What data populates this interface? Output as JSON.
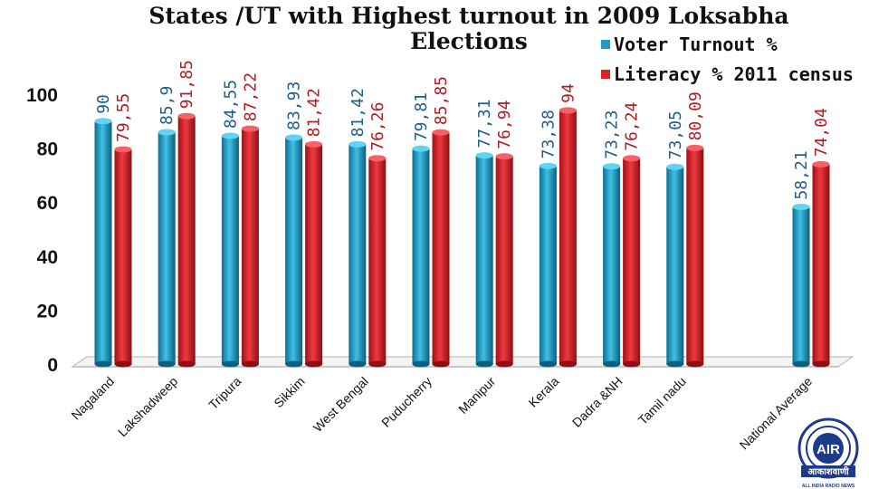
{
  "chart_data": {
    "type": "bar",
    "title_line1": "States /UT with Highest turnout in 2009 Loksabha",
    "title_line2": "Elections",
    "categories": [
      "Nagaland",
      "Lakshadweep",
      "Tripura",
      "Sikkim",
      "West Bengal",
      "Puducherry",
      "Manipur",
      "Kerala",
      "Dadra &NH",
      "Tamil nadu",
      "National Average"
    ],
    "series": [
      {
        "name": "Voter Turnout %",
        "color": "#1f9bc4",
        "label_color": "#1f5f8b",
        "values": [
          90,
          85.9,
          84.55,
          83.93,
          81.42,
          79.81,
          77.31,
          73.38,
          73.23,
          73.05,
          58.21
        ],
        "labels": [
          "90",
          "85,9",
          "84,55",
          "83,93",
          "81,42",
          "79,81",
          "77,31",
          "73,38",
          "73,23",
          "73,05",
          "58,21"
        ]
      },
      {
        "name": "Literacy % 2011 census",
        "color": "#d8232a",
        "label_color": "#b01e24",
        "values": [
          79.55,
          91.85,
          87.22,
          81.42,
          76.26,
          85.85,
          76.94,
          94,
          76.24,
          80.09,
          74.04
        ],
        "labels": [
          "79,55",
          "91,85",
          "87,22",
          "81,42",
          "76,26",
          "85,85",
          "76,94",
          "94",
          "76,24",
          "80,09",
          "74,04"
        ]
      }
    ],
    "ylim": [
      0,
      100
    ],
    "yticks": [
      "0",
      "20",
      "40",
      "60",
      "80",
      "100"
    ],
    "grid": false,
    "legend_position": "top-right"
  },
  "logo": {
    "icon": "all-india-radio-logo",
    "center_text": "AIR",
    "hindi_text": "आकाशवाणी",
    "english_text": "ALL INDIA RADIO NEWS",
    "color": "#1e3a8a"
  }
}
